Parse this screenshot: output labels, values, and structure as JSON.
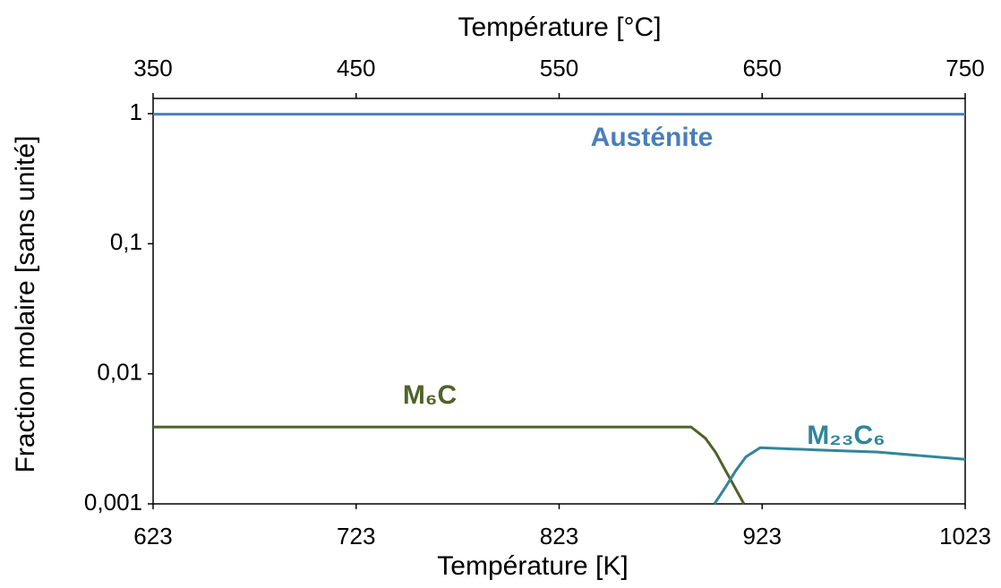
{
  "chart_data": {
    "type": "line",
    "xlabel": "Température [K]",
    "x2label": "Température [°C]",
    "ylabel": "Fraction molaire [sans unité]",
    "xlim": [
      623,
      1023
    ],
    "xticks": [
      623,
      723,
      823,
      923,
      1023
    ],
    "x2lim": [
      350,
      750
    ],
    "x2ticks": [
      350,
      450,
      550,
      650,
      750
    ],
    "ylim": [
      0.001,
      1
    ],
    "yscale": "log",
    "yticks": [
      {
        "value": 0.001,
        "label": "0,001"
      },
      {
        "value": 0.01,
        "label": "0,01"
      },
      {
        "value": 0.1,
        "label": "0,1"
      },
      1
    ],
    "grid": false,
    "series": [
      {
        "name": "Austénite",
        "color": "#4a7ebb",
        "x": [
          623,
          1023
        ],
        "values": [
          0.99,
          0.99
        ]
      },
      {
        "name": "M₆C",
        "color": "#4f6228",
        "x": [
          623,
          700,
          800,
          888,
          895,
          900,
          905,
          910,
          914
        ],
        "values": [
          0.0039,
          0.0039,
          0.0039,
          0.0039,
          0.0032,
          0.0025,
          0.0018,
          0.0013,
          0.001
        ]
      },
      {
        "name": "M₂₃C₆",
        "color": "#31859c",
        "x": [
          899.5,
          905,
          910,
          915,
          922,
          950,
          980,
          1023
        ],
        "values": [
          0.001,
          0.00135,
          0.0018,
          0.0023,
          0.0027,
          0.0026,
          0.0025,
          0.0022
        ]
      }
    ]
  }
}
